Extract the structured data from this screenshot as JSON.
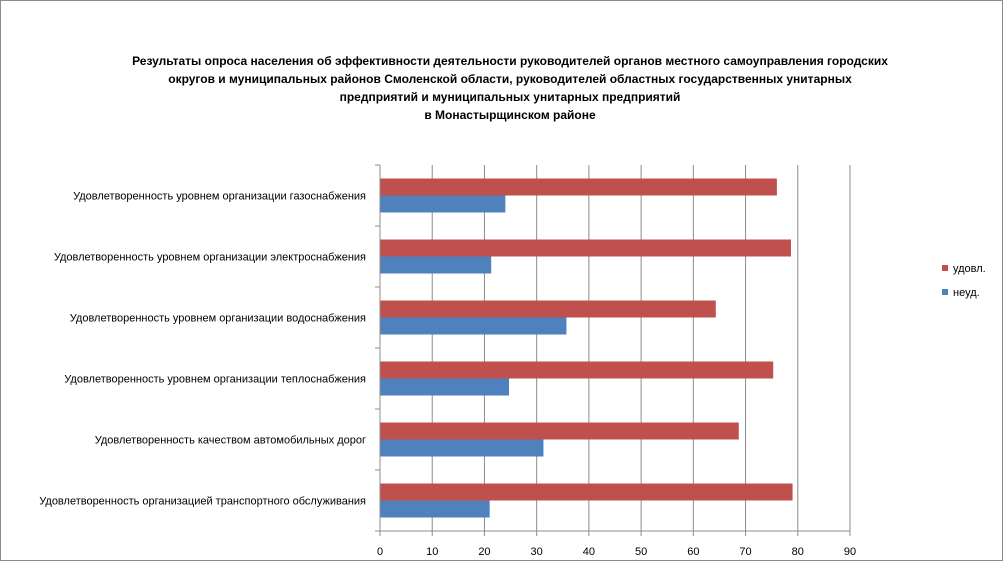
{
  "chart_data": {
    "type": "bar",
    "orientation": "horizontal",
    "title_lines": [
      "Результаты опроса населения об эффективности деятельности руководителей органов местного самоуправления городских",
      "округов и муниципальных районов Смоленской области, руководителей областных государственных унитарных",
      "предприятий и  муниципальных унитарных предприятий",
      "в Монастырщинском районе"
    ],
    "categories": [
      "Удовлетворенность  уровнем организации газоснабжения",
      "Удовлетворенность  уровнем организации электроснабжения",
      "Удовлетворенность  уровнем организации водоснабжения",
      "Удовлетворенность  уровнем организации теплоснабжения",
      "Удовлетворенность  качеством автомобильных дорог",
      "Удовлетворенность  организацией транспортного обслуживания"
    ],
    "series": [
      {
        "name": "удовл.",
        "color": "#c0504d",
        "values": [
          76,
          78.7,
          64.3,
          75.3,
          68.7,
          79
        ]
      },
      {
        "name": "неуд.",
        "color": "#4f81bd",
        "values": [
          24,
          21.3,
          35.7,
          24.7,
          31.3,
          21
        ]
      }
    ],
    "xlim": [
      0,
      90
    ],
    "xticks": [
      0,
      10,
      20,
      30,
      40,
      50,
      60,
      70,
      80,
      90
    ],
    "grid": true,
    "legend_position": "right"
  }
}
